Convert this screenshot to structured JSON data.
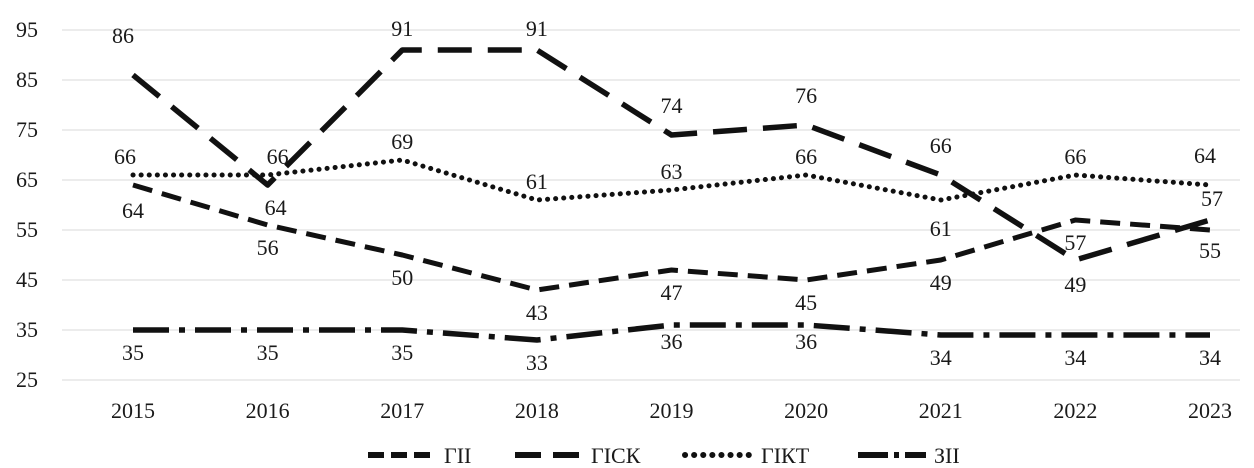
{
  "chart_data": {
    "type": "line",
    "title": "",
    "xlabel": "",
    "ylabel": "",
    "categories": [
      "2015",
      "2016",
      "2017",
      "2018",
      "2019",
      "2020",
      "2021",
      "2022",
      "2023"
    ],
    "ylim": [
      25,
      95
    ],
    "yticks": [
      "25",
      "35",
      "45",
      "55",
      "65",
      "75",
      "85",
      "95"
    ],
    "grid": "horizontal",
    "legend_position": "bottom",
    "series": [
      {
        "name": "ГІІ",
        "values": [
          64,
          56,
          50,
          43,
          47,
          45,
          49,
          57,
          55
        ],
        "labels": [
          "64",
          "56",
          "50",
          "43",
          "47",
          "45",
          "49",
          "57",
          "55"
        ],
        "color": "#111111",
        "style": "short-dash"
      },
      {
        "name": "ГІСК",
        "values": [
          86,
          64,
          91,
          91,
          74,
          76,
          66,
          49,
          57
        ],
        "labels": [
          "86",
          "64",
          "91",
          "91",
          "74",
          "76",
          "66",
          "49",
          "57"
        ],
        "color": "#111111",
        "style": "long-dash"
      },
      {
        "name": "ГІКТ",
        "values": [
          66,
          66,
          69,
          61,
          63,
          66,
          61,
          66,
          64
        ],
        "labels": [
          "66",
          "66",
          "69",
          "61",
          "63",
          "66",
          "61",
          "66",
          "64"
        ],
        "color": "#111111",
        "style": "dotted"
      },
      {
        "name": "ЗІІ",
        "values": [
          35,
          35,
          35,
          33,
          36,
          36,
          34,
          34,
          34
        ],
        "labels": [
          "35",
          "35",
          "35",
          "33",
          "36",
          "36",
          "34",
          "34",
          "34"
        ],
        "color": "#111111",
        "style": "dash-dot"
      }
    ]
  }
}
